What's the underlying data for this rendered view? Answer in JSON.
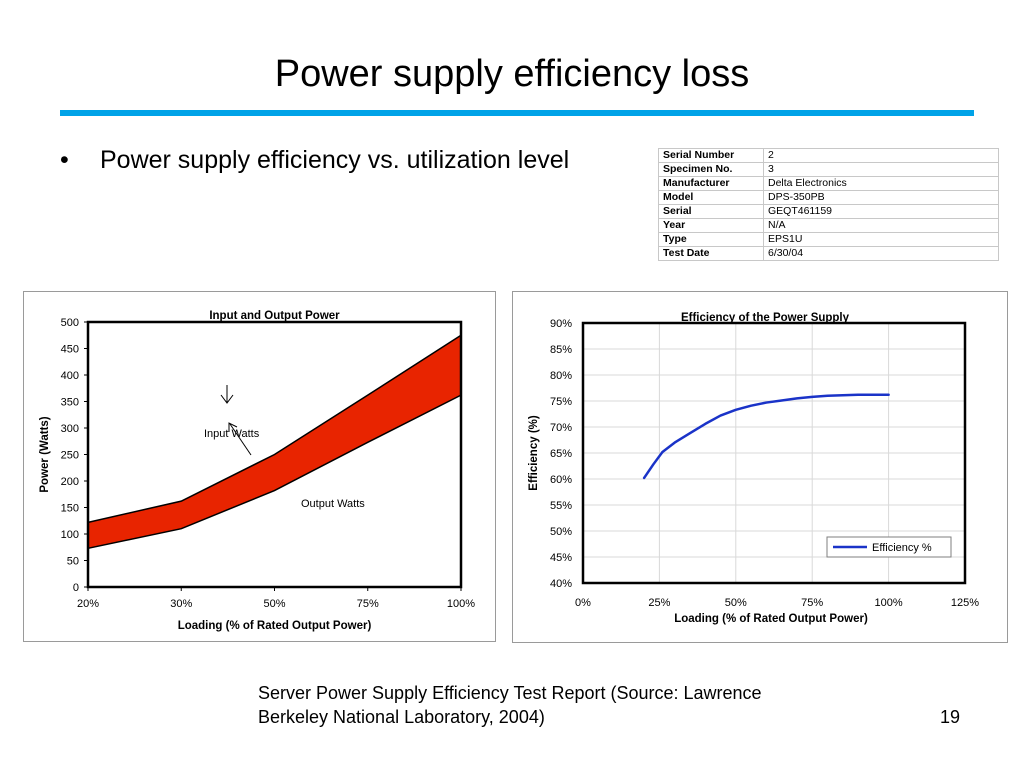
{
  "slide": {
    "title": "Power supply efficiency loss",
    "bullet": "Power supply efficiency vs. utilization level",
    "footer_line1": "Server Power Supply Efficiency Test Report (Source: Lawrence",
    "footer_line2": "Berkeley National Laboratory, 2004)",
    "page_number": "19",
    "accent_color": "#00a3e8"
  },
  "spec_table": [
    {
      "label": "Serial Number",
      "value": "2"
    },
    {
      "label": "Specimen No.",
      "value": "3"
    },
    {
      "label": "Manufacturer",
      "value": "Delta Electronics"
    },
    {
      "label": "Model",
      "value": "DPS-350PB"
    },
    {
      "label": "Serial",
      "value": "GEQT461159"
    },
    {
      "label": "Year",
      "value": "N/A"
    },
    {
      "label": "Type",
      "value": "EPS1U"
    },
    {
      "label": "Test Date",
      "value": "6/30/04"
    }
  ],
  "chart_data": [
    {
      "type": "area",
      "title": "Input and Output Power",
      "xlabel": "Loading (% of Rated Output Power)",
      "ylabel": "Power (Watts)",
      "categories": [
        "20%",
        "30%",
        "50%",
        "75%",
        "100%"
      ],
      "yticks": [
        0,
        50,
        100,
        150,
        200,
        250,
        300,
        350,
        400,
        450,
        500
      ],
      "ylim": [
        0,
        500
      ],
      "series": [
        {
          "name": "Input Watts",
          "values": [
            122,
            162,
            250,
            362,
            475
          ]
        },
        {
          "name": "Output Watts",
          "values": [
            73,
            110,
            182,
            273,
            362
          ]
        }
      ],
      "fill_color": "#e82400",
      "grid": false,
      "annotations": [
        "Input Watts",
        "Output Watts"
      ]
    },
    {
      "type": "line",
      "title": "Efficiency of the Power Supply",
      "xlabel": "Loading (% of Rated Output Power)",
      "ylabel": "Efficiency (%)",
      "xticks": [
        "0%",
        "25%",
        "50%",
        "75%",
        "100%",
        "125%"
      ],
      "xlim": [
        0,
        125
      ],
      "yticks": [
        "40%",
        "45%",
        "50%",
        "55%",
        "60%",
        "65%",
        "70%",
        "75%",
        "80%",
        "85%",
        "90%"
      ],
      "ylim": [
        40,
        90
      ],
      "series": [
        {
          "name": "Efficiency %",
          "x": [
            20,
            23,
            26,
            30,
            35,
            40,
            45,
            50,
            55,
            60,
            65,
            70,
            75,
            80,
            85,
            90,
            95,
            100
          ],
          "y": [
            60.2,
            62.8,
            65.2,
            67.0,
            68.8,
            70.6,
            72.2,
            73.3,
            74.1,
            74.7,
            75.1,
            75.5,
            75.8,
            76.0,
            76.1,
            76.2,
            76.2,
            76.2
          ]
        }
      ],
      "line_color": "#1a33c8",
      "grid": true,
      "legend": "bottom-right"
    }
  ]
}
